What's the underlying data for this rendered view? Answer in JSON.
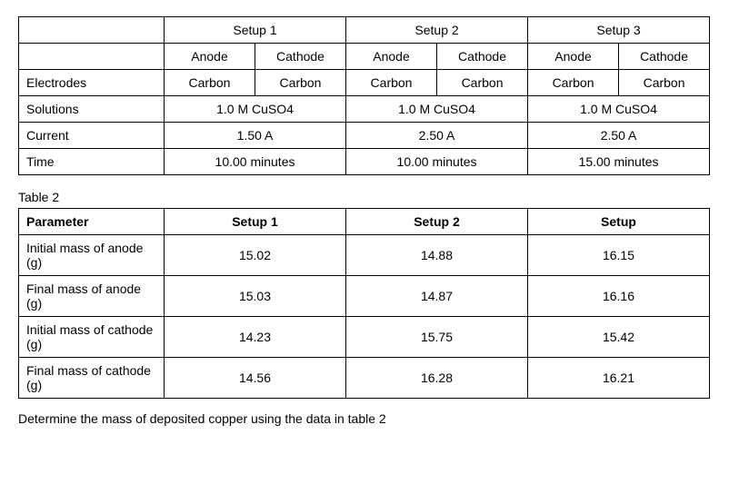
{
  "table1": {
    "setup_headers": [
      "Setup 1",
      "Setup 2",
      "Setup 3"
    ],
    "sub_headers": {
      "anode": "Anode",
      "cathode": "Cathode"
    },
    "rows": {
      "electrodes": {
        "label": "Electrodes",
        "values": [
          "Carbon",
          "Carbon",
          "Carbon",
          "Carbon",
          "Carbon",
          "Carbon"
        ]
      },
      "solutions": {
        "label": "Solutions",
        "values": [
          "1.0 M CuSO4",
          "1.0 M CuSO4",
          "1.0 M CuSO4"
        ]
      },
      "current": {
        "label": "Current",
        "values": [
          "1.50 A",
          "2.50 A",
          "2.50 A"
        ]
      },
      "time": {
        "label": "Time",
        "values": [
          "10.00 minutes",
          "10.00 minutes",
          "15.00 minutes"
        ]
      }
    }
  },
  "table2_caption": "Table 2",
  "table2": {
    "headers": [
      "Parameter",
      "Setup 1",
      "Setup 2",
      "Setup"
    ],
    "rows": [
      {
        "label": "Initial mass of anode (g)",
        "values": [
          "15.02",
          "14.88",
          "16.15"
        ]
      },
      {
        "label": "Final mass of anode (g)",
        "values": [
          "15.03",
          "14.87",
          "16.16"
        ]
      },
      {
        "label": "Initial mass of cathode (g)",
        "values": [
          "14.23",
          "15.75",
          "15.42"
        ]
      },
      {
        "label": "Final mass of cathode (g)",
        "values": [
          "14.56",
          "16.28",
          "16.21"
        ]
      }
    ]
  },
  "question": "Determine the mass of deposited copper using the data in table 2"
}
